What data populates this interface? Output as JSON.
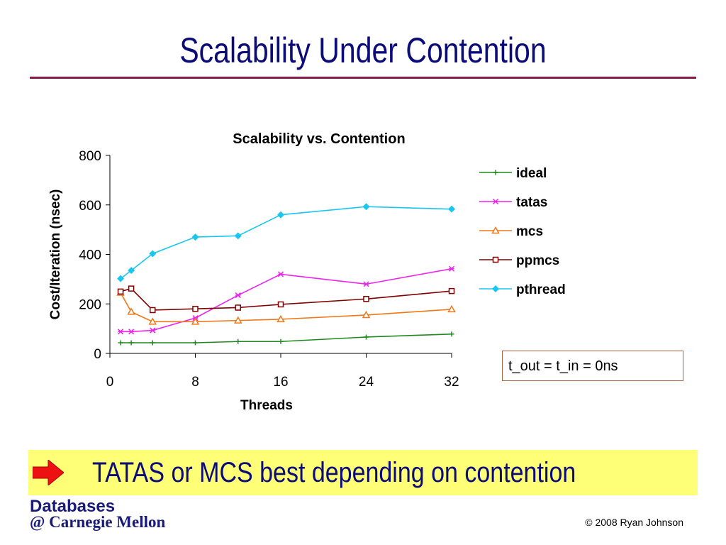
{
  "slide": {
    "title": "Scalability Under Contention",
    "note": "t_out = t_in = 0ns",
    "callout": "TATAS or MCS best depending on contention",
    "logo_line1": "Databases",
    "logo_line2": "@ Carnegie Mellon",
    "copyright": "© 2008 Ryan Johnson"
  },
  "colors": {
    "title": "#0b0b7a",
    "rule": "#8a1a4a",
    "callout_bg": "#ffff77",
    "arrow": "#ee1111"
  },
  "chart_data": {
    "type": "line",
    "title": "Scalability vs. Contention",
    "xlabel": "Threads",
    "ylabel": "Cost/Iteration (nsec)",
    "xlim": [
      0,
      32
    ],
    "ylim": [
      0,
      800
    ],
    "xticks": [
      0,
      8,
      16,
      24,
      32
    ],
    "yticks": [
      0,
      200,
      400,
      600,
      800
    ],
    "grid": false,
    "legend_position": "right",
    "series": [
      {
        "name": "ideal",
        "color": "#1e8a1e",
        "marker": "plus",
        "x": [
          1,
          2,
          4,
          8,
          12,
          16,
          24,
          32
        ],
        "y": [
          43,
          43,
          43,
          43,
          48,
          48,
          66,
          78
        ]
      },
      {
        "name": "tatas",
        "color": "#ee22ee",
        "marker": "star",
        "x": [
          1,
          2,
          4,
          8,
          12,
          16,
          24,
          32
        ],
        "y": [
          88,
          88,
          93,
          143,
          235,
          320,
          280,
          342
        ]
      },
      {
        "name": "mcs",
        "color": "#f07818",
        "marker": "triangle",
        "x": [
          1,
          2,
          4,
          8,
          12,
          16,
          24,
          32
        ],
        "y": [
          245,
          168,
          128,
          128,
          133,
          138,
          155,
          178
        ]
      },
      {
        "name": "ppmcs",
        "color": "#800000",
        "marker": "square",
        "x": [
          1,
          2,
          4,
          8,
          12,
          16,
          24,
          32
        ],
        "y": [
          250,
          262,
          175,
          180,
          185,
          198,
          220,
          252
        ]
      },
      {
        "name": "pthread",
        "color": "#19c6f0",
        "marker": "diamond",
        "x": [
          1,
          2,
          4,
          8,
          12,
          16,
          24,
          32
        ],
        "y": [
          302,
          335,
          403,
          470,
          475,
          560,
          593,
          583
        ]
      }
    ]
  }
}
